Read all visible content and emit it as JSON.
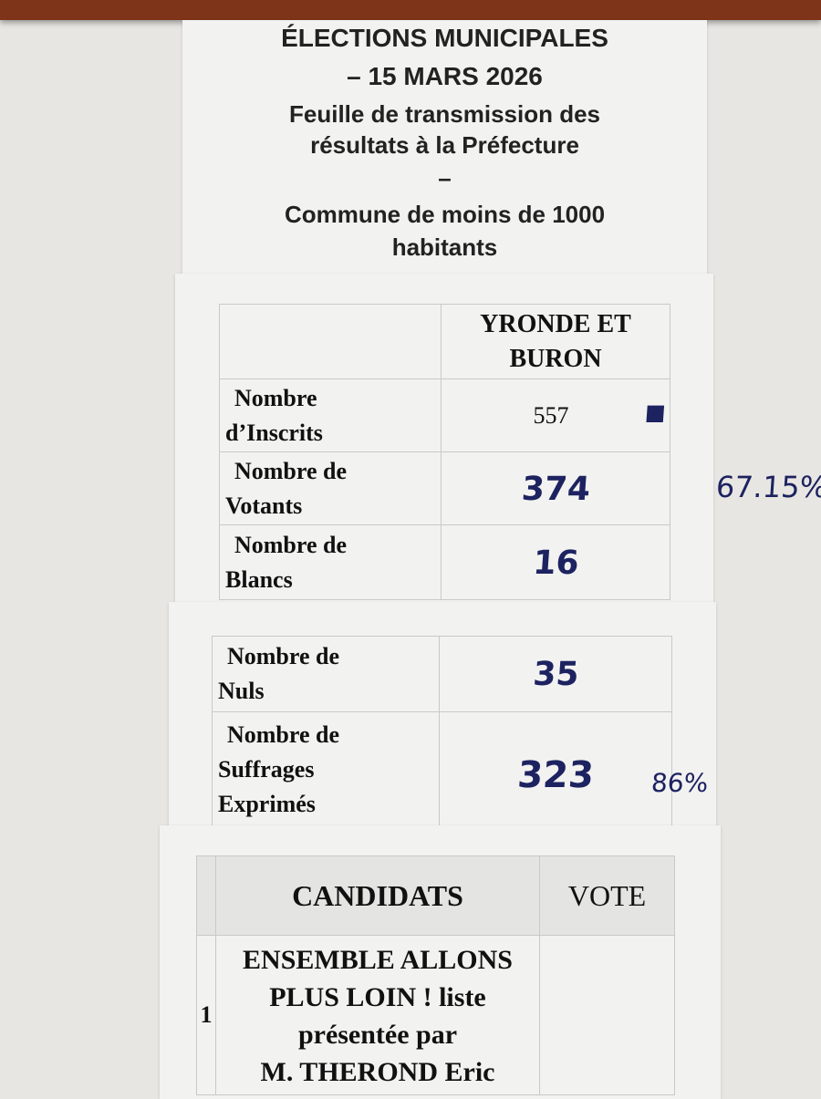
{
  "header": {
    "title_line1": "ÉLECTIONS MUNICIPALES",
    "title_line2": "– 15 MARS 2026",
    "subtitle_line1": "Feuille de transmission des",
    "subtitle_line2": "résultats à la Préfecture",
    "dash": "–",
    "commune_line1": "Commune de moins de 1000",
    "commune_line2": "habitants"
  },
  "results": {
    "commune_line1": "YRONDE ET",
    "commune_line2": "BURON",
    "rows": [
      {
        "label1": "Nombre",
        "label2": "d’Inscrits",
        "value": "557",
        "handwritten": false
      },
      {
        "label1": "Nombre de",
        "label2": "Votants",
        "value": "374",
        "handwritten": true,
        "note": "67.15%"
      },
      {
        "label1": "Nombre de",
        "label2": "Blancs",
        "value": "16",
        "handwritten": true
      }
    ],
    "rows2": [
      {
        "label1": "Nombre de",
        "label2": "Nuls",
        "value": "35"
      },
      {
        "label1": "Nombre de",
        "label2": "Suffrages",
        "label3": "Exprimés",
        "value": "323",
        "note": "86%"
      }
    ]
  },
  "candidates": {
    "header_candidats": "CANDIDATS",
    "header_vote": "VOTE",
    "items": [
      {
        "number": "1",
        "line1": "ENSEMBLE ALLONS",
        "line2": "PLUS LOIN ! liste",
        "line3": "présentée par",
        "line4": "M. THEROND Eric",
        "vote": ""
      }
    ]
  },
  "colors": {
    "ink": "#1d2260",
    "banner": "#7e3418"
  }
}
